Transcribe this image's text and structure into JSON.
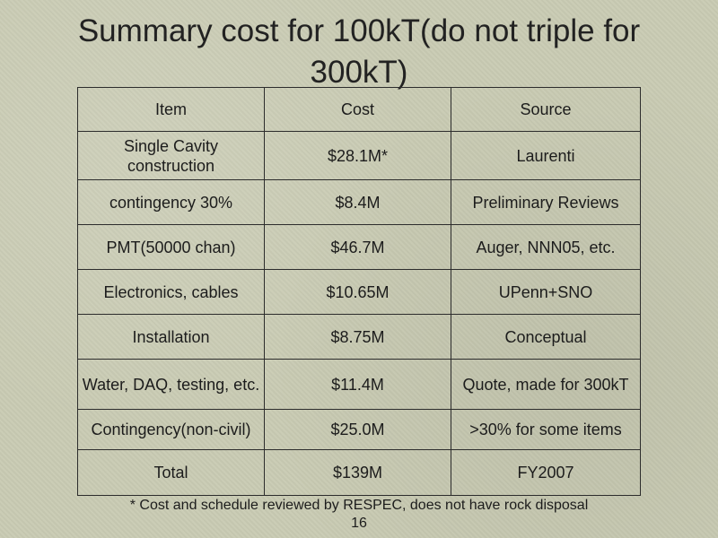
{
  "slide": {
    "title": "Summary cost for 100kT(do not triple for 300kT)",
    "footnote": "* Cost and schedule reviewed by RESPEC, does not have rock disposal",
    "page_number": "16"
  },
  "table": {
    "headers": [
      "Item",
      "Cost",
      "Source"
    ],
    "rows": [
      {
        "item": "Single Cavity construction",
        "cost": "$28.1M*",
        "source": "Laurenti"
      },
      {
        "item": "contingency 30%",
        "cost": "$8.4M",
        "source": "Preliminary Reviews"
      },
      {
        "item": "PMT(50000 chan)",
        "cost": "$46.7M",
        "source": "Auger, NNN05, etc."
      },
      {
        "item": "Electronics, cables",
        "cost": "$10.65M",
        "source": "UPenn+SNO"
      },
      {
        "item": "Installation",
        "cost": "$8.75M",
        "source": "Conceptual"
      },
      {
        "item": "Water, DAQ, testing, etc.",
        "cost": "$11.4M",
        "source": "Quote, made for 300kT"
      },
      {
        "item": "Contingency(non-civil)",
        "cost": "$25.0M",
        "source": ">30% for some items"
      },
      {
        "item": "Total",
        "cost": "$139M",
        "source": "FY2007"
      }
    ]
  }
}
